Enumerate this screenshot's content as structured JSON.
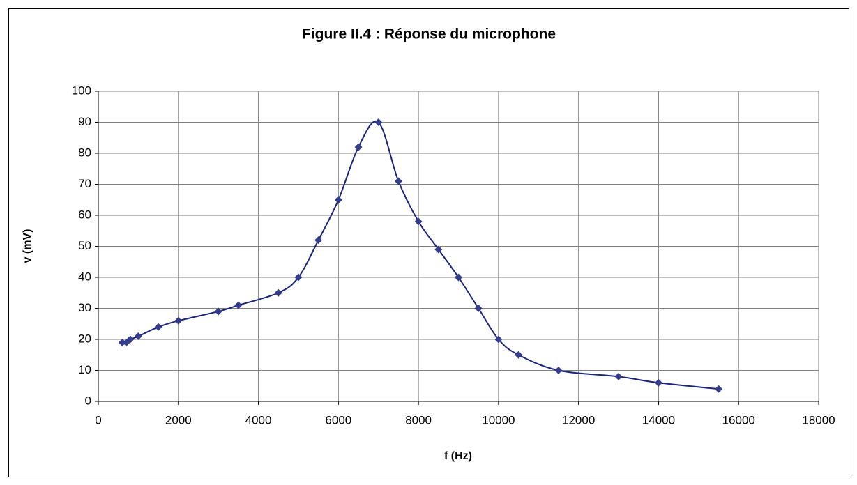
{
  "chart_data": {
    "type": "line",
    "title": "Figure II.4 : Réponse du microphone",
    "x_label": "f (Hz)",
    "y_label": "v (mV)",
    "x": [
      600,
      700,
      800,
      1000,
      1500,
      2000,
      3000,
      3500,
      4500,
      5000,
      5500,
      6000,
      6500,
      7000,
      7500,
      8000,
      8500,
      9000,
      9500,
      10000,
      10500,
      11500,
      13000,
      14000,
      15500
    ],
    "values": [
      19,
      19,
      20,
      21,
      24,
      26,
      29,
      31,
      35,
      40,
      52,
      65,
      82,
      90,
      71,
      58,
      49,
      40,
      30,
      20,
      15,
      10,
      8,
      6,
      4
    ],
    "color": "#1a237e",
    "marker_color": "#333d8a",
    "smooth": true,
    "xlim": [
      0,
      18000
    ],
    "xticks": [
      0,
      2000,
      4000,
      6000,
      8000,
      10000,
      12000,
      14000,
      16000,
      18000
    ],
    "ylim": [
      0,
      100
    ],
    "yticks": [
      0,
      10,
      20,
      30,
      40,
      50,
      60,
      70,
      80,
      90,
      100
    ],
    "grid": true
  }
}
